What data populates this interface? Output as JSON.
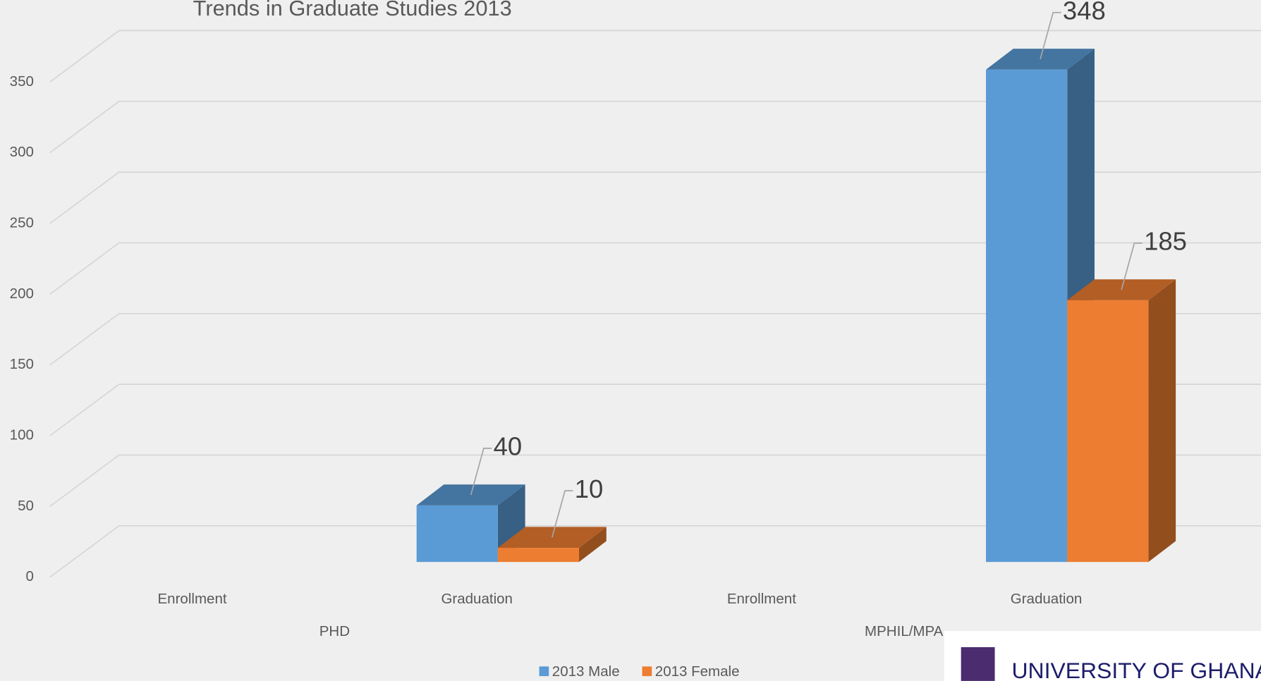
{
  "chart_data": {
    "type": "bar3d",
    "title": "Trends in Graduate Studies 2013",
    "categories": [
      "Enrollment",
      "Graduation",
      "Enrollment",
      "Graduation"
    ],
    "groups": [
      "PHD",
      "MPHIL/MPA"
    ],
    "series": [
      {
        "name": "2013 Male",
        "color": "#5b9bd5",
        "values": [
          null,
          40,
          null,
          348
        ]
      },
      {
        "name": "2013 Female",
        "color": "#ed7d31",
        "values": [
          null,
          10,
          null,
          185
        ]
      }
    ],
    "ylim": [
      0,
      350
    ],
    "yticks": [
      0,
      50,
      100,
      150,
      200,
      250,
      300,
      350
    ],
    "grid": true,
    "legend": "bottom"
  },
  "logo": {
    "text": "UNIVERSITY OF GHANA"
  }
}
